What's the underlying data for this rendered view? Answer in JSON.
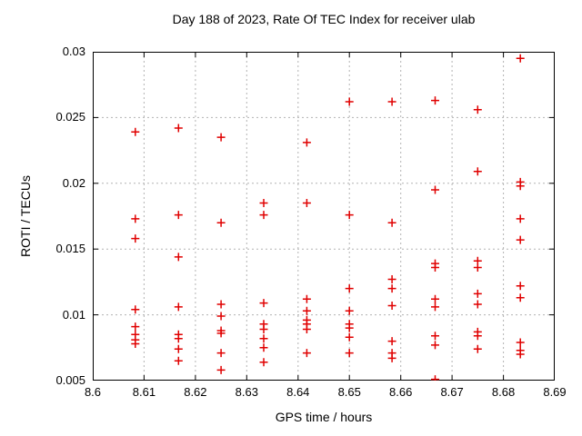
{
  "title": "Day 188 of 2023, Rate Of TEC Index for receiver ulab",
  "chart_data": {
    "type": "scatter",
    "title": "Day 188 of 2023, Rate Of TEC Index for receiver ulab",
    "xlabel": "GPS time / hours",
    "ylabel": "ROTI / TECUs",
    "xlim": [
      8.6,
      8.69
    ],
    "ylim": [
      0.005,
      0.03
    ],
    "xticks": [
      8.6,
      8.61,
      8.62,
      8.63,
      8.64,
      8.65,
      8.66,
      8.67,
      8.68,
      8.69
    ],
    "xtick_labels": [
      "8.6",
      "8.61",
      "8.62",
      "8.63",
      "8.64",
      "8.65",
      "8.66",
      "8.67",
      "8.68",
      "8.69"
    ],
    "yticks": [
      0.005,
      0.01,
      0.015,
      0.02,
      0.025,
      0.03
    ],
    "ytick_labels": [
      "0.005",
      "0.01",
      "0.015",
      "0.02",
      "0.025",
      "0.03"
    ],
    "grid": true,
    "legend": "none",
    "marker": {
      "symbol": "plus",
      "color": "#e00000",
      "size": 9
    },
    "grid_color": "#b3b3b3",
    "border_color": "#000000",
    "series": [
      {
        "name": "ROTI",
        "points": [
          [
            8.6083,
            0.0239
          ],
          [
            8.6083,
            0.0173
          ],
          [
            8.6083,
            0.0158
          ],
          [
            8.6083,
            0.0104
          ],
          [
            8.6083,
            0.0091
          ],
          [
            8.6083,
            0.0085
          ],
          [
            8.6083,
            0.0081
          ],
          [
            8.6083,
            0.0078
          ],
          [
            8.6167,
            0.0242
          ],
          [
            8.6167,
            0.0176
          ],
          [
            8.6167,
            0.0144
          ],
          [
            8.6167,
            0.0106
          ],
          [
            8.6167,
            0.0085
          ],
          [
            8.6167,
            0.0082
          ],
          [
            8.6167,
            0.0074
          ],
          [
            8.6167,
            0.0065
          ],
          [
            8.625,
            0.0235
          ],
          [
            8.625,
            0.017
          ],
          [
            8.625,
            0.0108
          ],
          [
            8.625,
            0.0099
          ],
          [
            8.625,
            0.0088
          ],
          [
            8.625,
            0.0086
          ],
          [
            8.625,
            0.0071
          ],
          [
            8.625,
            0.0058
          ],
          [
            8.6333,
            0.0185
          ],
          [
            8.6333,
            0.0176
          ],
          [
            8.6333,
            0.0109
          ],
          [
            8.6333,
            0.0093
          ],
          [
            8.6333,
            0.0089
          ],
          [
            8.6333,
            0.0082
          ],
          [
            8.6333,
            0.0075
          ],
          [
            8.6333,
            0.0064
          ],
          [
            8.6417,
            0.0231
          ],
          [
            8.6417,
            0.0185
          ],
          [
            8.6417,
            0.0112
          ],
          [
            8.6417,
            0.0103
          ],
          [
            8.6417,
            0.0096
          ],
          [
            8.6417,
            0.0093
          ],
          [
            8.6417,
            0.0089
          ],
          [
            8.6417,
            0.0071
          ],
          [
            8.65,
            0.0262
          ],
          [
            8.65,
            0.0176
          ],
          [
            8.65,
            0.012
          ],
          [
            8.65,
            0.0103
          ],
          [
            8.65,
            0.0093
          ],
          [
            8.65,
            0.009
          ],
          [
            8.65,
            0.0083
          ],
          [
            8.65,
            0.0071
          ],
          [
            8.6583,
            0.0262
          ],
          [
            8.6583,
            0.017
          ],
          [
            8.6583,
            0.0127
          ],
          [
            8.6583,
            0.012
          ],
          [
            8.6583,
            0.0107
          ],
          [
            8.6583,
            0.008
          ],
          [
            8.6583,
            0.0071
          ],
          [
            8.6583,
            0.0067
          ],
          [
            8.6667,
            0.0263
          ],
          [
            8.6667,
            0.0195
          ],
          [
            8.6667,
            0.0139
          ],
          [
            8.6667,
            0.0136
          ],
          [
            8.6667,
            0.0112
          ],
          [
            8.6667,
            0.0106
          ],
          [
            8.6667,
            0.0084
          ],
          [
            8.6667,
            0.0077
          ],
          [
            8.6667,
            0.0051
          ],
          [
            8.675,
            0.0256
          ],
          [
            8.675,
            0.0209
          ],
          [
            8.675,
            0.0141
          ],
          [
            8.675,
            0.0136
          ],
          [
            8.675,
            0.0116
          ],
          [
            8.675,
            0.0108
          ],
          [
            8.675,
            0.0087
          ],
          [
            8.675,
            0.0084
          ],
          [
            8.675,
            0.0074
          ],
          [
            8.6833,
            0.0295
          ],
          [
            8.6833,
            0.0201
          ],
          [
            8.6833,
            0.0198
          ],
          [
            8.6833,
            0.0173
          ],
          [
            8.6833,
            0.0157
          ],
          [
            8.6833,
            0.0122
          ],
          [
            8.6833,
            0.0113
          ],
          [
            8.6833,
            0.0079
          ],
          [
            8.6833,
            0.0073
          ],
          [
            8.6833,
            0.007
          ]
        ]
      }
    ]
  }
}
